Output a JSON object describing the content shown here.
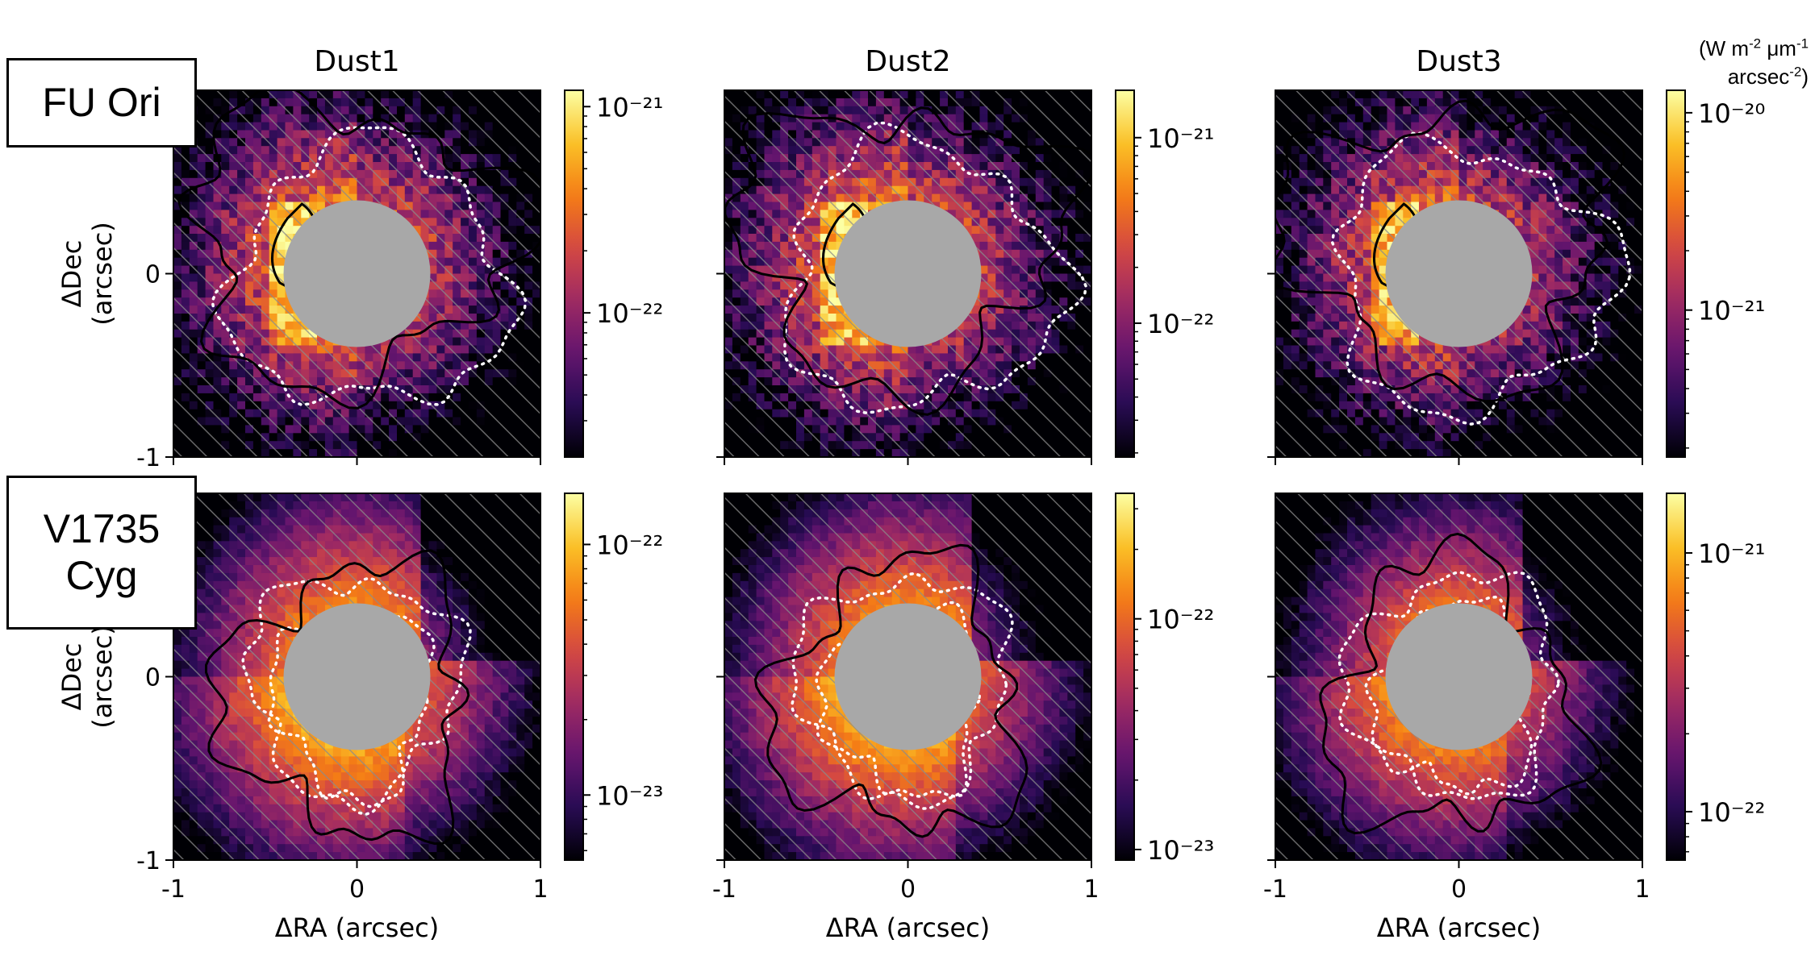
{
  "figure": {
    "columns": [
      "Dust1",
      "Dust2",
      "Dust3"
    ],
    "rows": [
      {
        "label_lines": [
          "FU Ori"
        ]
      },
      {
        "label_lines": [
          "V1735",
          "Cyg"
        ]
      }
    ],
    "colorbar_unit": {
      "line1_pre": "(W m",
      "line1_e1": "-2",
      "line1_mid": " μm",
      "line1_e2": "-1",
      "line2_pre": "arcsec",
      "line2_e1": "-2",
      "line2_post": ")"
    },
    "colors": {
      "mask_gray": "#a8a8a8",
      "hatch": "#8a8a8a",
      "contour_white": "#ffffff",
      "contour_black": "#000000"
    }
  },
  "chart_data": [
    {
      "type": "heatmap",
      "title": "Dust1",
      "row": "FU Ori",
      "xlabel": "",
      "ylabel": "ΔDec\n(arcsec)",
      "xlim": [
        -1,
        1
      ],
      "ylim": [
        -1,
        1
      ],
      "x_ticks": [
        -1,
        0,
        1
      ],
      "y_ticks": [
        -1,
        0
      ],
      "x_tick_labels_shown": false,
      "colormap": "inferno",
      "colorbar_scale": "log",
      "colorbar_range": [
        2e-23,
        1.2e-21
      ],
      "colorbar_ticks": [
        {
          "value": 1e-22,
          "label": "10⁻²²"
        },
        {
          "value": 1e-21,
          "label": "10⁻²¹"
        }
      ]
    },
    {
      "type": "heatmap",
      "title": "Dust2",
      "row": "FU Ori",
      "xlabel": "",
      "ylabel": "",
      "xlim": [
        -1,
        1
      ],
      "ylim": [
        -1,
        1
      ],
      "x_ticks": [
        -1,
        0,
        1
      ],
      "y_ticks": [
        -1,
        0
      ],
      "x_tick_labels_shown": false,
      "colormap": "inferno",
      "colorbar_scale": "log",
      "colorbar_range": [
        1.9e-23,
        1.8e-21
      ],
      "colorbar_ticks": [
        {
          "value": 1e-22,
          "label": "10⁻²²"
        },
        {
          "value": 1e-21,
          "label": "10⁻²¹"
        }
      ]
    },
    {
      "type": "heatmap",
      "title": "Dust3",
      "row": "FU Ori",
      "xlabel": "",
      "ylabel": "",
      "xlim": [
        -1,
        1
      ],
      "ylim": [
        -1,
        1
      ],
      "x_ticks": [
        -1,
        0,
        1
      ],
      "y_ticks": [
        -1,
        0
      ],
      "x_tick_labels_shown": false,
      "colormap": "inferno",
      "colorbar_scale": "log",
      "colorbar_range": [
        1.8e-22,
        1.3e-20
      ],
      "colorbar_ticks": [
        {
          "value": 1e-21,
          "label": "10⁻²¹"
        },
        {
          "value": 1e-20,
          "label": "10⁻²⁰"
        }
      ]
    },
    {
      "type": "heatmap",
      "title": "",
      "row": "V1735 Cyg",
      "xlabel": "ΔRA (arcsec)",
      "ylabel": "ΔDec\n(arcsec)",
      "xlim": [
        -1,
        1
      ],
      "ylim": [
        -1,
        1
      ],
      "x_ticks": [
        -1,
        0,
        1
      ],
      "y_ticks": [
        -1,
        0
      ],
      "x_tick_labels_shown": true,
      "colormap": "inferno",
      "colorbar_scale": "log",
      "colorbar_range": [
        5.5e-24,
        1.6e-22
      ],
      "colorbar_ticks": [
        {
          "value": 1e-23,
          "label": "10⁻²³"
        },
        {
          "value": 1e-22,
          "label": "10⁻²²"
        }
      ]
    },
    {
      "type": "heatmap",
      "title": "",
      "row": "V1735 Cyg",
      "xlabel": "ΔRA (arcsec)",
      "ylabel": "",
      "xlim": [
        -1,
        1
      ],
      "ylim": [
        -1,
        1
      ],
      "x_ticks": [
        -1,
        0,
        1
      ],
      "y_ticks": [
        -1,
        0
      ],
      "x_tick_labels_shown": true,
      "colormap": "inferno",
      "colorbar_scale": "log",
      "colorbar_range": [
        9e-24,
        3.5e-22
      ],
      "colorbar_ticks": [
        {
          "value": 1e-23,
          "label": "10⁻²³"
        },
        {
          "value": 1e-22,
          "label": "10⁻²²"
        }
      ]
    },
    {
      "type": "heatmap",
      "title": "",
      "row": "V1735 Cyg",
      "xlabel": "ΔRA (arcsec)",
      "ylabel": "",
      "xlim": [
        -1,
        1
      ],
      "ylim": [
        -1,
        1
      ],
      "x_ticks": [
        -1,
        0,
        1
      ],
      "y_ticks": [
        -1,
        0
      ],
      "x_tick_labels_shown": true,
      "colormap": "inferno",
      "colorbar_scale": "log",
      "colorbar_range": [
        6.5e-23,
        1.7e-21
      ],
      "colorbar_ticks": [
        {
          "value": 1e-22,
          "label": "10⁻²²"
        },
        {
          "value": 1e-21,
          "label": "10⁻²¹"
        }
      ]
    }
  ]
}
